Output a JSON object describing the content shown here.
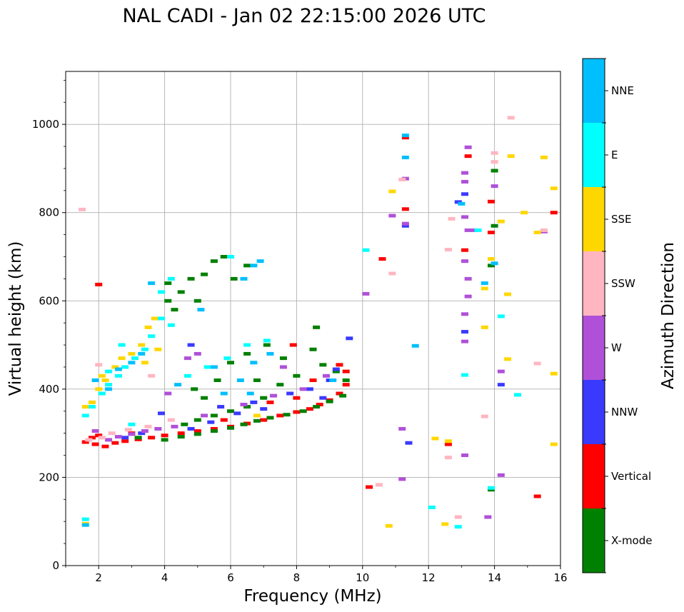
{
  "chart_data": {
    "type": "scatter",
    "title": "NAL CADI - Jan 02 22:15:00 2026 UTC",
    "xlabel": "Frequency (MHz)",
    "ylabel": "Virtual height (km)",
    "xlim": [
      1,
      16
    ],
    "ylim": [
      0,
      1120
    ],
    "xticks": [
      2,
      4,
      6,
      8,
      10,
      12,
      14,
      16
    ],
    "yticks": [
      0,
      200,
      400,
      600,
      800,
      1000
    ],
    "grid": true,
    "colorbar": {
      "label": "Azimuth Direction",
      "categories": [
        {
          "name": "X-mode",
          "color": "#008000"
        },
        {
          "name": "Vertical",
          "color": "#ff0000"
        },
        {
          "name": "NNW",
          "color": "#3a3aff"
        },
        {
          "name": "W",
          "color": "#b050d8"
        },
        {
          "name": "SSW",
          "color": "#ffb6c1"
        },
        {
          "name": "SSE",
          "color": "#ffd700"
        },
        {
          "name": "E",
          "color": "#00ffff"
        },
        {
          "name": "NNE",
          "color": "#00bfff"
        }
      ]
    },
    "series": [
      {
        "name": "Vertical",
        "color": "#ff0000",
        "points": [
          [
            1.6,
            280
          ],
          [
            1.9,
            275
          ],
          [
            2.2,
            270
          ],
          [
            2.5,
            278
          ],
          [
            2.8,
            282
          ],
          [
            3.2,
            286
          ],
          [
            3.6,
            290
          ],
          [
            4.0,
            295
          ],
          [
            4.5,
            300
          ],
          [
            5.0,
            305
          ],
          [
            5.5,
            310
          ],
          [
            6.0,
            315
          ],
          [
            6.5,
            322
          ],
          [
            7.0,
            330
          ],
          [
            7.5,
            340
          ],
          [
            8.0,
            348
          ],
          [
            8.4,
            355
          ],
          [
            8.7,
            365
          ],
          [
            9.0,
            375
          ],
          [
            9.3,
            390
          ],
          [
            9.5,
            410
          ],
          [
            9.5,
            440
          ],
          [
            9.3,
            455
          ],
          [
            8.0,
            380
          ],
          [
            7.2,
            370
          ],
          [
            5.8,
            330
          ],
          [
            3.0,
            300
          ],
          [
            2.0,
            295
          ],
          [
            1.8,
            290
          ],
          [
            7.9,
            500
          ],
          [
            8.5,
            420
          ],
          [
            10.2,
            178
          ],
          [
            10.6,
            695
          ],
          [
            11.3,
            808
          ],
          [
            11.3,
            970
          ],
          [
            13.1,
            715
          ],
          [
            13.2,
            928
          ],
          [
            13.9,
            755
          ],
          [
            13.9,
            825
          ],
          [
            15.3,
            157
          ],
          [
            15.8,
            800
          ],
          [
            12.6,
            275
          ],
          [
            2.0,
            637
          ]
        ]
      },
      {
        "name": "X-mode",
        "color": "#008000",
        "points": [
          [
            4.0,
            285
          ],
          [
            4.5,
            292
          ],
          [
            5.0,
            298
          ],
          [
            5.5,
            305
          ],
          [
            6.0,
            312
          ],
          [
            6.4,
            320
          ],
          [
            6.8,
            328
          ],
          [
            7.2,
            335
          ],
          [
            7.7,
            342
          ],
          [
            8.2,
            350
          ],
          [
            8.6,
            360
          ],
          [
            9.0,
            372
          ],
          [
            9.4,
            385
          ],
          [
            9.5,
            420
          ],
          [
            9.2,
            440
          ],
          [
            8.8,
            455
          ],
          [
            8.5,
            490
          ],
          [
            8.6,
            540
          ],
          [
            8.0,
            430
          ],
          [
            7.5,
            410
          ],
          [
            7.0,
            380
          ],
          [
            6.5,
            360
          ],
          [
            6.0,
            350
          ],
          [
            5.5,
            340
          ],
          [
            5.0,
            330
          ],
          [
            4.6,
            320
          ],
          [
            5.2,
            380
          ],
          [
            5.6,
            420
          ],
          [
            6.0,
            460
          ],
          [
            6.5,
            480
          ],
          [
            7.1,
            500
          ],
          [
            7.6,
            470
          ],
          [
            6.8,
            420
          ],
          [
            4.1,
            640
          ],
          [
            4.1,
            600
          ],
          [
            4.5,
            620
          ],
          [
            4.8,
            650
          ],
          [
            5.2,
            660
          ],
          [
            5.5,
            690
          ],
          [
            5.8,
            700
          ],
          [
            6.1,
            650
          ],
          [
            6.5,
            680
          ],
          [
            5.0,
            600
          ],
          [
            4.3,
            580
          ],
          [
            4.9,
            400
          ],
          [
            3.2,
            290
          ],
          [
            13.9,
            680
          ],
          [
            14.0,
            895
          ],
          [
            14.0,
            770
          ],
          [
            13.9,
            172
          ]
        ]
      },
      {
        "name": "NNW",
        "color": "#3a3aff",
        "points": [
          [
            2.8,
            290
          ],
          [
            3.3,
            300
          ],
          [
            4.8,
            310
          ],
          [
            5.4,
            325
          ],
          [
            6.2,
            345
          ],
          [
            7.0,
            355
          ],
          [
            7.8,
            390
          ],
          [
            8.4,
            400
          ],
          [
            9.0,
            420
          ],
          [
            9.2,
            445
          ],
          [
            8.8,
            380
          ],
          [
            6.7,
            370
          ],
          [
            5.7,
            360
          ],
          [
            9.6,
            515
          ],
          [
            13.1,
            530
          ],
          [
            13.1,
            842
          ],
          [
            12.9,
            824
          ],
          [
            11.4,
            278
          ],
          [
            14.2,
            410
          ],
          [
            11.3,
            770
          ],
          [
            4.8,
            500
          ],
          [
            3.9,
            345
          ]
        ]
      },
      {
        "name": "W",
        "color": "#b050d8",
        "points": [
          [
            2.3,
            285
          ],
          [
            2.6,
            292
          ],
          [
            3.0,
            298
          ],
          [
            3.4,
            305
          ],
          [
            3.8,
            310
          ],
          [
            4.3,
            315
          ],
          [
            5.2,
            340
          ],
          [
            6.4,
            365
          ],
          [
            7.3,
            385
          ],
          [
            8.2,
            400
          ],
          [
            8.9,
            430
          ],
          [
            7.6,
            450
          ],
          [
            4.1,
            390
          ],
          [
            4.7,
            470
          ],
          [
            5.0,
            480
          ],
          [
            13.1,
            250
          ],
          [
            13.1,
            508
          ],
          [
            13.1,
            570
          ],
          [
            13.2,
            610
          ],
          [
            13.2,
            650
          ],
          [
            13.1,
            690
          ],
          [
            13.2,
            760
          ],
          [
            13.1,
            790
          ],
          [
            13.1,
            870
          ],
          [
            13.1,
            890
          ],
          [
            13.2,
            948
          ],
          [
            13.4,
            760
          ],
          [
            14.2,
            205
          ],
          [
            14.2,
            440
          ],
          [
            13.8,
            110
          ],
          [
            14.0,
            860
          ],
          [
            10.1,
            616
          ],
          [
            11.3,
            877
          ],
          [
            11.3,
            775
          ],
          [
            11.2,
            310
          ],
          [
            15.5,
            757
          ],
          [
            10.9,
            793
          ],
          [
            11.2,
            196
          ],
          [
            1.9,
            305
          ]
        ]
      },
      {
        "name": "SSW",
        "color": "#ffb6c1",
        "points": [
          [
            1.7,
            285
          ],
          [
            2.1,
            290
          ],
          [
            2.4,
            300
          ],
          [
            2.9,
            308
          ],
          [
            3.5,
            315
          ],
          [
            4.2,
            330
          ],
          [
            2.0,
            455
          ],
          [
            1.5,
            807
          ],
          [
            10.5,
            183
          ],
          [
            10.9,
            662
          ],
          [
            12.6,
            245
          ],
          [
            12.6,
            716
          ],
          [
            12.7,
            786
          ],
          [
            12.9,
            110
          ],
          [
            13.7,
            338
          ],
          [
            14.0,
            935
          ],
          [
            14.0,
            915
          ],
          [
            14.5,
            1015
          ],
          [
            15.3,
            458
          ],
          [
            15.5,
            760
          ],
          [
            11.2,
            875
          ],
          [
            3.6,
            430
          ]
        ]
      },
      {
        "name": "SSE",
        "color": "#ffd700",
        "points": [
          [
            1.8,
            370
          ],
          [
            2.0,
            400
          ],
          [
            2.2,
            420
          ],
          [
            2.5,
            450
          ],
          [
            2.7,
            470
          ],
          [
            3.0,
            480
          ],
          [
            3.3,
            500
          ],
          [
            3.5,
            540
          ],
          [
            3.7,
            560
          ],
          [
            3.4,
            460
          ],
          [
            2.1,
            430
          ],
          [
            1.6,
            360
          ],
          [
            10.8,
            90
          ],
          [
            10.9,
            848
          ],
          [
            12.5,
            94
          ],
          [
            12.6,
            282
          ],
          [
            13.7,
            540
          ],
          [
            13.7,
            628
          ],
          [
            13.9,
            695
          ],
          [
            14.2,
            780
          ],
          [
            14.4,
            468
          ],
          [
            14.4,
            615
          ],
          [
            14.5,
            928
          ],
          [
            14.9,
            800
          ],
          [
            15.3,
            755
          ],
          [
            15.5,
            925
          ],
          [
            15.8,
            275
          ],
          [
            15.8,
            435
          ],
          [
            15.8,
            855
          ],
          [
            12.2,
            288
          ],
          [
            6.8,
            340
          ],
          [
            3.8,
            490
          ],
          [
            1.6,
            95
          ]
        ]
      },
      {
        "name": "E",
        "color": "#00ffff",
        "points": [
          [
            1.6,
            340
          ],
          [
            1.8,
            360
          ],
          [
            2.1,
            390
          ],
          [
            2.3,
            410
          ],
          [
            2.6,
            430
          ],
          [
            2.8,
            450
          ],
          [
            3.1,
            470
          ],
          [
            3.4,
            490
          ],
          [
            3.6,
            520
          ],
          [
            3.9,
            560
          ],
          [
            3.9,
            620
          ],
          [
            4.2,
            650
          ],
          [
            2.7,
            500
          ],
          [
            2.3,
            440
          ],
          [
            4.7,
            430
          ],
          [
            5.3,
            450
          ],
          [
            5.9,
            470
          ],
          [
            6.5,
            500
          ],
          [
            7.1,
            510
          ],
          [
            4.2,
            545
          ],
          [
            12.1,
            132
          ],
          [
            12.9,
            88
          ],
          [
            13.1,
            432
          ],
          [
            13.5,
            760
          ],
          [
            14.2,
            565
          ],
          [
            14.7,
            387
          ],
          [
            13.9,
            176
          ],
          [
            10.1,
            715
          ],
          [
            1.6,
            105
          ],
          [
            3.0,
            320
          ],
          [
            6.0,
            700
          ]
        ]
      },
      {
        "name": "NNE",
        "color": "#00bfff",
        "points": [
          [
            1.9,
            420
          ],
          [
            2.3,
            400
          ],
          [
            2.6,
            445
          ],
          [
            3.0,
            460
          ],
          [
            3.3,
            480
          ],
          [
            6.7,
            460
          ],
          [
            7.2,
            480
          ],
          [
            6.3,
            420
          ],
          [
            5.8,
            390
          ],
          [
            6.6,
            390
          ],
          [
            5.5,
            450
          ],
          [
            6.7,
            680
          ],
          [
            6.9,
            690
          ],
          [
            6.4,
            650
          ],
          [
            5.1,
            580
          ],
          [
            3.6,
            640
          ],
          [
            11.3,
            925
          ],
          [
            11.3,
            975
          ],
          [
            11.6,
            498
          ],
          [
            13.0,
            820
          ],
          [
            13.7,
            640
          ],
          [
            14.0,
            685
          ],
          [
            9.1,
            420
          ],
          [
            1.6,
            92
          ],
          [
            4.4,
            410
          ]
        ]
      }
    ]
  }
}
